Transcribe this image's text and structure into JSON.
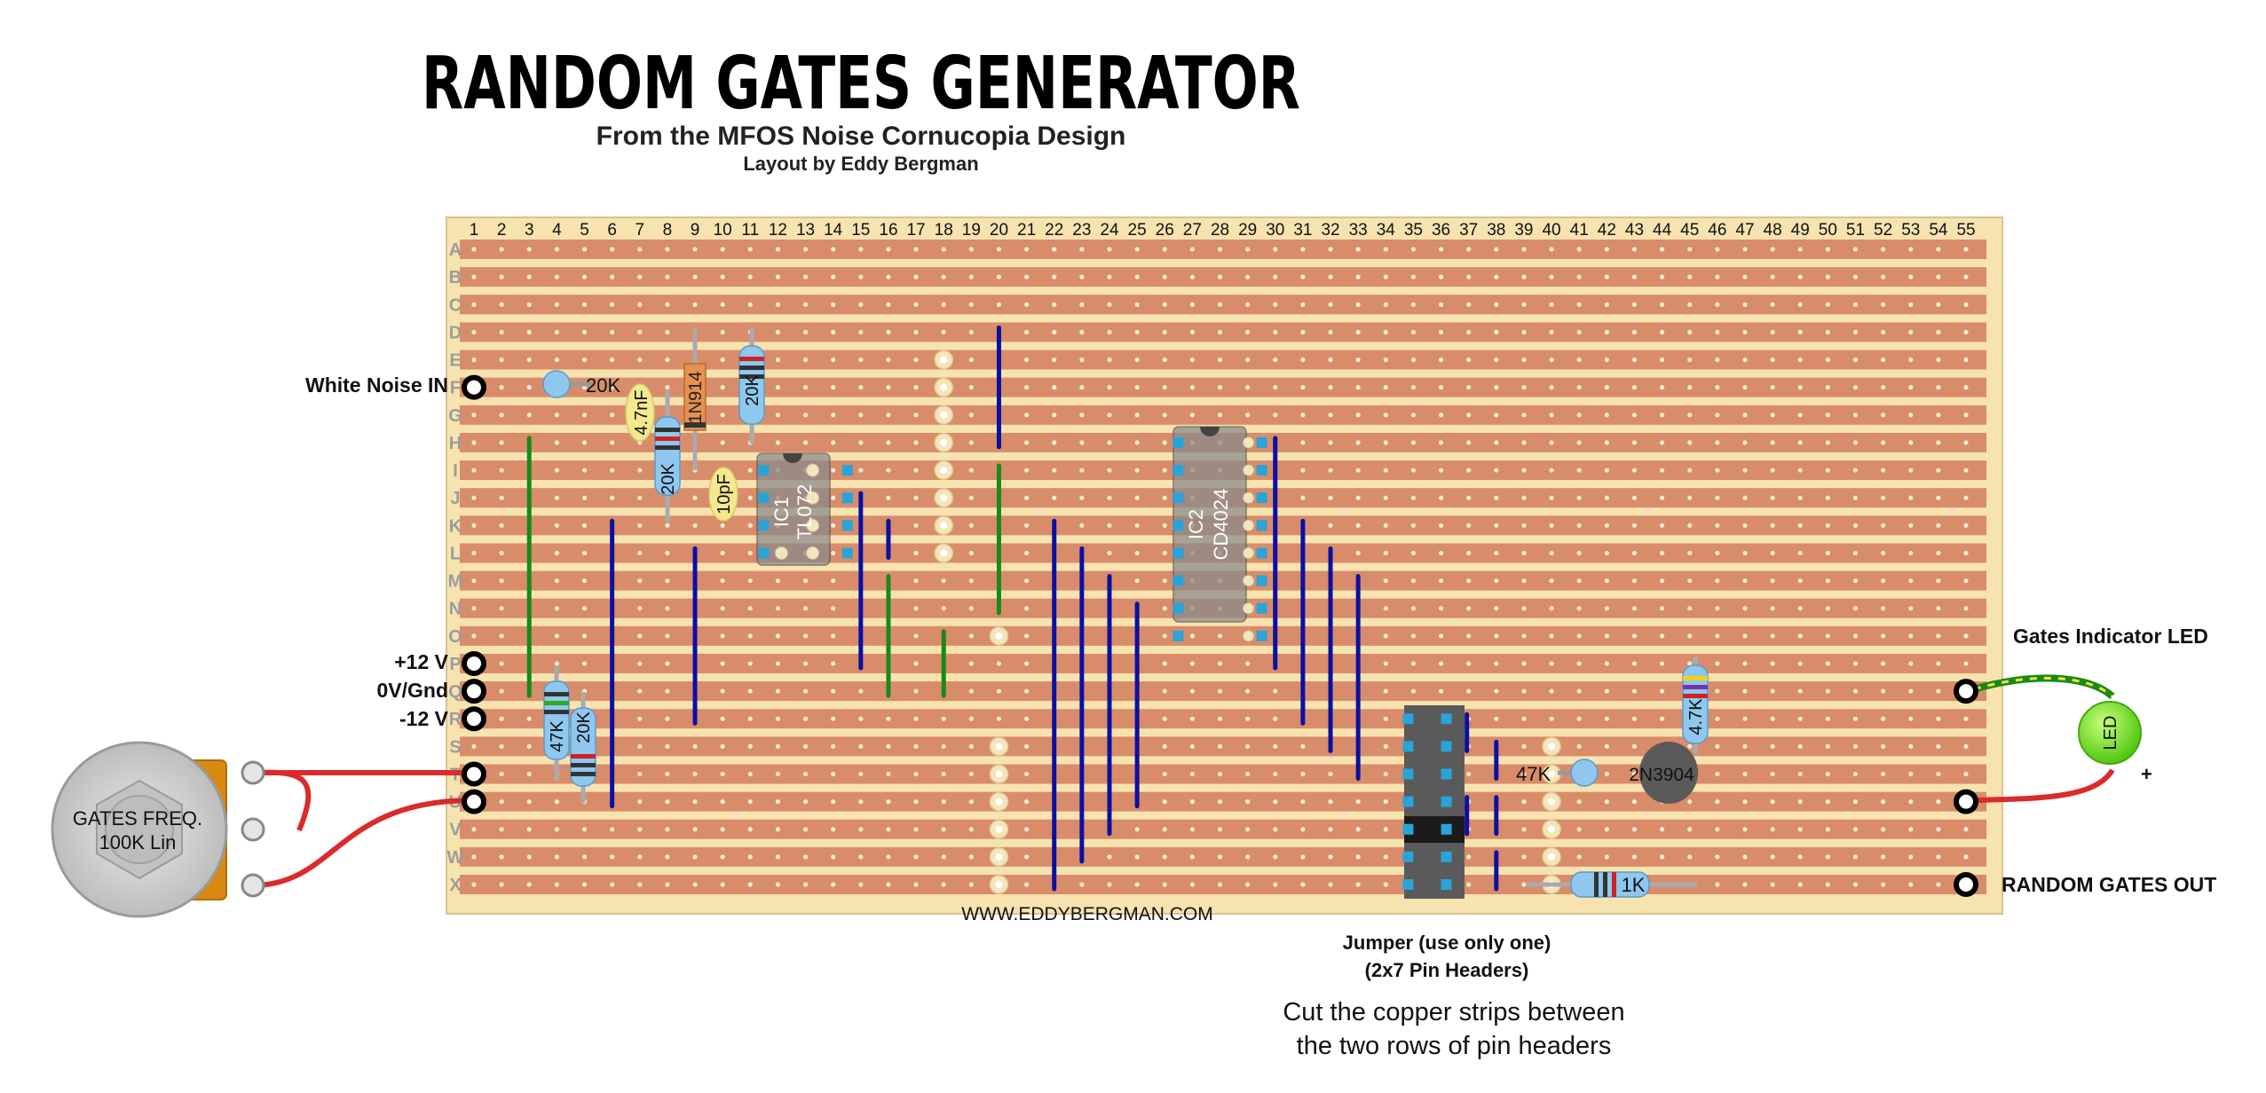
{
  "header": {
    "title": "RANDOM GATES GENERATOR",
    "subtitle": "From the MFOS Noise Cornucopia Design",
    "credit": "Layout by Eddy Bergman"
  },
  "board": {
    "columns": [
      "1",
      "2",
      "3",
      "4",
      "5",
      "6",
      "7",
      "8",
      "9",
      "10",
      "11",
      "12",
      "13",
      "14",
      "15",
      "16",
      "17",
      "18",
      "19",
      "20",
      "21",
      "22",
      "23",
      "24",
      "25",
      "26",
      "27",
      "28",
      "29",
      "30",
      "31",
      "32",
      "33",
      "34",
      "35",
      "36",
      "37",
      "38",
      "39",
      "40",
      "41",
      "42",
      "43",
      "44",
      "45",
      "46",
      "47",
      "48",
      "49",
      "50",
      "51",
      "52",
      "53",
      "54",
      "55"
    ],
    "rows": [
      "A",
      "B",
      "C",
      "D",
      "E",
      "F",
      "G",
      "H",
      "I",
      "J",
      "K",
      "L",
      "M",
      "N",
      "O",
      "P",
      "Q",
      "R",
      "S",
      "T",
      "U",
      "V",
      "W",
      "X"
    ],
    "website": "WWW.EDDYBERGMAN.COM"
  },
  "io_labels": {
    "white_noise_in": "White Noise IN",
    "plus12": "+12 V",
    "gnd": "0V/Gnd",
    "minus12": "-12 V",
    "gates_led": "Gates Indicator LED",
    "random_out": "RANDOM GATES OUT",
    "led_plus": "+"
  },
  "components": {
    "ic1_name": "IC1",
    "ic1_part": "TL072",
    "ic2_name": "IC2",
    "ic2_part": "CD4024",
    "r_20k_noise": "20K",
    "r_20k_b": "20K",
    "r_20k_c": "20K",
    "r_20k_pot": "20K",
    "r_47k_pot": "47K",
    "r_47k_base": "47K",
    "r_4k7": "4.7K",
    "r_1k": "1K",
    "c_4n7": "4.7nF",
    "c_10p": "10pF",
    "diode": "1N914",
    "transistor": "2N3904",
    "led": "LED",
    "pot_line1": "GATES FREQ.",
    "pot_line2": "100K Lin"
  },
  "notes": {
    "jumper_line1": "Jumper (use only one)",
    "jumper_line2": "(2x7 Pin Headers)",
    "cut_line1": "Cut the copper strips between",
    "cut_line2": "the two rows of pin headers"
  },
  "colors": {
    "board": "#f7e3b0",
    "strip": "#d98c6a",
    "link_blue": "#0a10a0",
    "link_green": "#178a17",
    "wire_red": "#d92b2b",
    "led_green": "#6fe31f"
  }
}
